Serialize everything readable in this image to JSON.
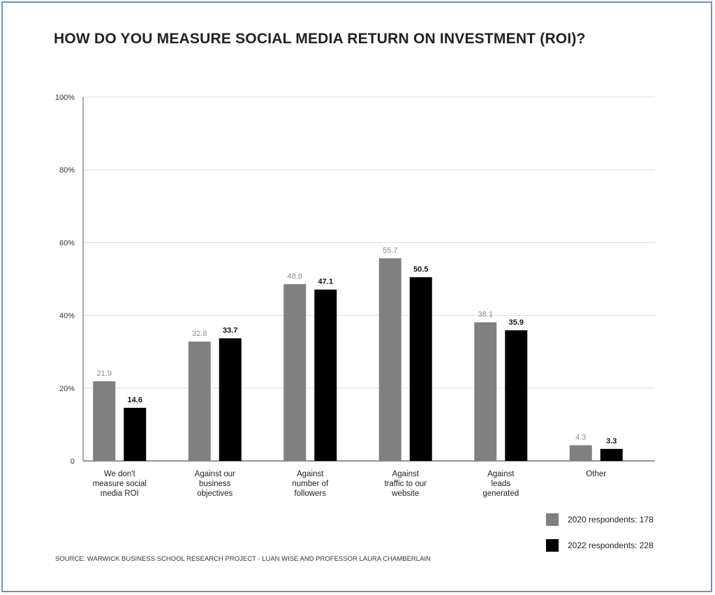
{
  "title": "HOW DO YOU MEASURE SOCIAL MEDIA RETURN ON INVESTMENT (ROI)?",
  "source": "SOURCE: WARWICK BUSINESS SCHOOL RESEARCH PROJECT - LUAN WISE AND PROFESSOR LAURA CHAMBERLAIN",
  "colors": {
    "series_2020": "#808080",
    "series_2022": "#000000",
    "grid": "#dcdcdc"
  },
  "chart_data": {
    "type": "bar",
    "title": "HOW DO YOU MEASURE SOCIAL MEDIA RETURN ON INVESTMENT (ROI)?",
    "categories": [
      [
        "We don't",
        "measure social",
        "media ROI"
      ],
      [
        "Against our",
        "business",
        "objectives"
      ],
      [
        "Against",
        "number of",
        "followers"
      ],
      [
        "Against",
        "traffic to our",
        "website"
      ],
      [
        "Against",
        "leads",
        "generated"
      ],
      [
        "Other"
      ]
    ],
    "series": [
      {
        "name": "2020 respondents: 178",
        "values": [
          21.9,
          32.8,
          48.6,
          55.7,
          38.1,
          4.3
        ]
      },
      {
        "name": "2022 respondents: 228",
        "values": [
          14.6,
          33.7,
          47.1,
          50.5,
          35.9,
          3.3
        ]
      }
    ],
    "ylim": [
      0,
      100
    ],
    "yticks": [
      {
        "value": 0,
        "label": "0"
      },
      {
        "value": 20,
        "label": "20%"
      },
      {
        "value": 40,
        "label": "40%"
      },
      {
        "value": 60,
        "label": "60%"
      },
      {
        "value": 80,
        "label": "80%"
      },
      {
        "value": 100,
        "label": "100%"
      }
    ],
    "xlabel": "",
    "ylabel": "",
    "grid": true,
    "legend": "bottom-right"
  }
}
